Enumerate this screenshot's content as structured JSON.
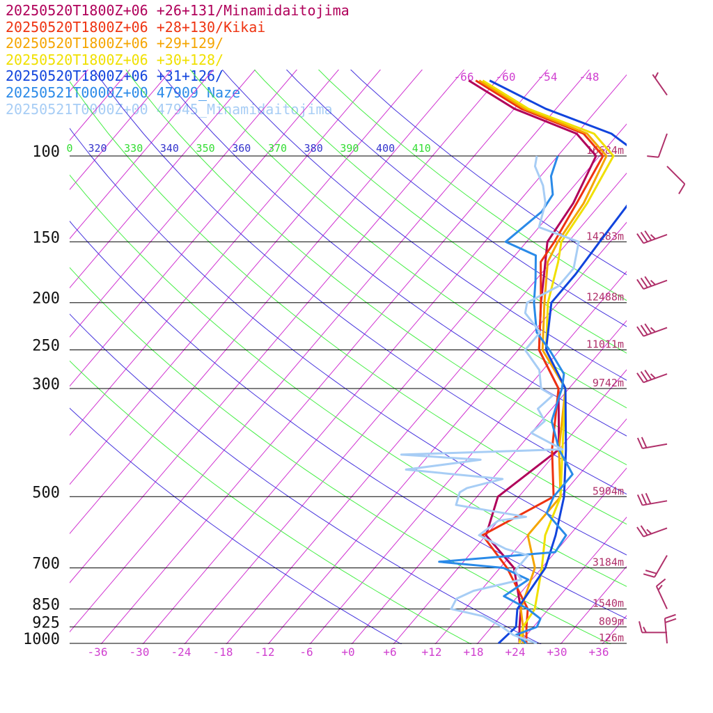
{
  "legend": [
    {
      "text": "20250520T1800Z+06 +26+131/Minamidaitojima",
      "color": "#b0005a"
    },
    {
      "text": "20250520T1800Z+06 +28+130/Kikai",
      "color": "#ee3311"
    },
    {
      "text": "20250520T1800Z+06 +29+129/",
      "color": "#f5a500"
    },
    {
      "text": "20250520T1800Z+06 +30+128/",
      "color": "#f0e000"
    },
    {
      "text": "20250520T1800Z+06 +31+126/",
      "color": "#1144dd"
    },
    {
      "text": "20250521T0000Z+00 47909_Naze",
      "color": "#2a8ae8"
    },
    {
      "text": "20250521T0000Z+00 47945_Minamidaitojima",
      "color": "#a7cdf5"
    }
  ],
  "chart_data": {
    "type": "line",
    "title": "",
    "pressure_levels": [
      {
        "p": 100,
        "label": "100",
        "height": "16684m"
      },
      {
        "p": 150,
        "label": "150",
        "height": "14283m"
      },
      {
        "p": 200,
        "label": "200",
        "height": "12488m"
      },
      {
        "p": 250,
        "label": "250",
        "height": "11011m"
      },
      {
        "p": 300,
        "label": "300",
        "height": "9742m"
      },
      {
        "p": 500,
        "label": "500",
        "height": "5904m"
      },
      {
        "p": 700,
        "label": "700",
        "height": "3184m"
      },
      {
        "p": 850,
        "label": "850",
        "height": "1540m"
      },
      {
        "p": 925,
        "label": "925",
        "height": "809m"
      },
      {
        "p": 1000,
        "label": "1000",
        "height": "126m"
      }
    ],
    "temperature_ticks": [
      "-36",
      "-30",
      "-24",
      "-18",
      "-12",
      "-6",
      "+0",
      "+6",
      "+12",
      "+18",
      "+24",
      "+30",
      "+36"
    ],
    "upper_temperature_labels": [
      "-66",
      "-60",
      "-54",
      "-48"
    ],
    "theta_labels": [
      {
        "text": "0",
        "color": "#33dd33"
      },
      {
        "text": "320",
        "color": "#3333cc"
      },
      {
        "text": "330",
        "color": "#33dd33"
      },
      {
        "text": "340",
        "color": "#3333cc"
      },
      {
        "text": "350",
        "color": "#33dd33"
      },
      {
        "text": "360",
        "color": "#3333cc"
      },
      {
        "text": "370",
        "color": "#33dd33"
      },
      {
        "text": "380",
        "color": "#3333cc"
      },
      {
        "text": "390",
        "color": "#33dd33"
      },
      {
        "text": "400",
        "color": "#3333cc"
      },
      {
        "text": "410",
        "color": "#33dd33"
      }
    ],
    "series": [
      {
        "name": "20250520T1800Z+06 +26+131/Minamidaitojima",
        "color": "#b0005a",
        "points": [
          [
            1000,
            24.0
          ],
          [
            925,
            22.0
          ],
          [
            850,
            20.0
          ],
          [
            700,
            14.0
          ],
          [
            600,
            6.0
          ],
          [
            500,
            3.0
          ],
          [
            400,
            6.0
          ],
          [
            300,
            -1.5
          ],
          [
            250,
            -9.0
          ],
          [
            200,
            -14.5
          ],
          [
            175,
            -17.5
          ],
          [
            150,
            -21.0
          ],
          [
            125,
            -22.0
          ],
          [
            100,
            -24.5
          ],
          [
            90,
            -30.0
          ],
          [
            80,
            -42.0
          ],
          [
            70,
            -52.0
          ]
        ]
      },
      {
        "name": "20250520T1800Z+06 +28+130/Kikai",
        "color": "#ee3311",
        "points": [
          [
            1000,
            25.0
          ],
          [
            925,
            23.0
          ],
          [
            850,
            21.0
          ],
          [
            700,
            13.0
          ],
          [
            600,
            5.5
          ],
          [
            500,
            11.0
          ],
          [
            400,
            5.0
          ],
          [
            300,
            -1.5
          ],
          [
            250,
            -9.0
          ],
          [
            200,
            -14.5
          ],
          [
            165,
            -19.5
          ],
          [
            150,
            -20.0
          ],
          [
            125,
            -21.5
          ],
          [
            100,
            -23.5
          ],
          [
            90,
            -29.0
          ],
          [
            80,
            -41.0
          ],
          [
            70,
            -51.0
          ]
        ]
      },
      {
        "name": "20250520T1800Z+06 +29+129/",
        "color": "#f5a500",
        "points": [
          [
            1000,
            24.5
          ],
          [
            925,
            22.5
          ],
          [
            850,
            20.0
          ],
          [
            700,
            17.0
          ],
          [
            600,
            12.0
          ],
          [
            500,
            12.0
          ],
          [
            400,
            6.0
          ],
          [
            300,
            -0.5
          ],
          [
            250,
            -8.5
          ],
          [
            200,
            -14.0
          ],
          [
            165,
            -18.5
          ],
          [
            150,
            -19.5
          ],
          [
            125,
            -20.5
          ],
          [
            100,
            -23.0
          ],
          [
            90,
            -28.5
          ],
          [
            80,
            -40.5
          ],
          [
            70,
            -50.5
          ]
        ]
      },
      {
        "name": "20250520T1800Z+06 +30+128/",
        "color": "#f0e000",
        "points": [
          [
            1000,
            24.0
          ],
          [
            925,
            22.5
          ],
          [
            850,
            22.0
          ],
          [
            700,
            18.0
          ],
          [
            600,
            14.5
          ],
          [
            500,
            12.0
          ],
          [
            400,
            6.5
          ],
          [
            300,
            -0.5
          ],
          [
            250,
            -8.0
          ],
          [
            200,
            -13.5
          ],
          [
            165,
            -17.0
          ],
          [
            150,
            -19.0
          ],
          [
            125,
            -20.0
          ],
          [
            100,
            -22.0
          ],
          [
            90,
            -27.5
          ],
          [
            80,
            -40.0
          ],
          [
            70,
            -50.0
          ]
        ]
      },
      {
        "name": "20250520T1800Z+06 +31+126/",
        "color": "#1144dd",
        "points": [
          [
            1000,
            21.0
          ],
          [
            925,
            21.5
          ],
          [
            850,
            19.5
          ],
          [
            700,
            18.5
          ],
          [
            600,
            16.0
          ],
          [
            500,
            12.5
          ],
          [
            400,
            7.0
          ],
          [
            300,
            -0.5
          ],
          [
            250,
            -8.0
          ],
          [
            200,
            -13.0
          ],
          [
            175,
            -13.0
          ],
          [
            150,
            -13.5
          ],
          [
            125,
            -14.0
          ],
          [
            100,
            -18.0
          ],
          [
            90,
            -25.0
          ],
          [
            80,
            -37.5
          ],
          [
            70,
            -49.0
          ]
        ]
      },
      {
        "name": "20250521T0000Z+00 47909_Naze",
        "color": "#2a8ae8",
        "points": [
          [
            1000,
            25.0
          ],
          [
            960,
            22.5
          ],
          [
            925,
            24.5
          ],
          [
            890,
            24.0
          ],
          [
            850,
            21.0
          ],
          [
            800,
            16.0
          ],
          [
            740,
            17.5
          ],
          [
            700,
            12.5
          ],
          [
            680,
            2.5
          ],
          [
            650,
            18.0
          ],
          [
            600,
            17.5
          ],
          [
            540,
            12.0
          ],
          [
            500,
            11.0
          ],
          [
            450,
            11.0
          ],
          [
            400,
            6.0
          ],
          [
            350,
            1.5
          ],
          [
            310,
            -0.5
          ],
          [
            300,
            -1.0
          ],
          [
            280,
            -2.5
          ],
          [
            250,
            -7.5
          ],
          [
            230,
            -11.5
          ],
          [
            200,
            -15.5
          ],
          [
            180,
            -18.0
          ],
          [
            160,
            -21.0
          ],
          [
            150,
            -27.0
          ],
          [
            130,
            -25.5
          ],
          [
            120,
            -26.0
          ],
          [
            110,
            -28.5
          ],
          [
            100,
            -30.0
          ]
        ]
      },
      {
        "name": "20250521T0000Z+00 47945_Minamidaitojima",
        "color": "#a7cdf5",
        "points": [
          [
            1000,
            26.5
          ],
          [
            960,
            22.0
          ],
          [
            925,
            19.5
          ],
          [
            880,
            15.5
          ],
          [
            850,
            10.0
          ],
          [
            810,
            9.5
          ],
          [
            780,
            11.0
          ],
          [
            740,
            16.5
          ],
          [
            710,
            14.5
          ],
          [
            660,
            14.5
          ],
          [
            640,
            10.5
          ],
          [
            600,
            5.0
          ],
          [
            560,
            6.0
          ],
          [
            550,
            9.5
          ],
          [
            520,
            -2.0
          ],
          [
            490,
            -3.0
          ],
          [
            480,
            -2.5
          ],
          [
            460,
            1.5
          ],
          [
            440,
            -13.5
          ],
          [
            420,
            -4.0
          ],
          [
            410,
            -16.0
          ],
          [
            400,
            6.5
          ],
          [
            370,
            0.0
          ],
          [
            350,
            0.5
          ],
          [
            330,
            -2.0
          ],
          [
            310,
            -1.5
          ],
          [
            300,
            -4.0
          ],
          [
            275,
            -6.5
          ],
          [
            250,
            -11.0
          ],
          [
            230,
            -11.0
          ],
          [
            210,
            -15.5
          ],
          [
            200,
            -16.5
          ],
          [
            185,
            -14.0
          ],
          [
            170,
            -14.0
          ],
          [
            150,
            -16.5
          ],
          [
            140,
            -24.0
          ],
          [
            125,
            -26.0
          ],
          [
            115,
            -28.5
          ],
          [
            105,
            -32.0
          ],
          [
            100,
            -33.0
          ]
        ]
      }
    ],
    "wind_barbs": [
      {
        "p": 75,
        "speed": 5,
        "dir": 325
      },
      {
        "p": 90,
        "speed": 10,
        "dir": 200
      },
      {
        "p": 105,
        "speed": 10,
        "dir": 135
      },
      {
        "p": 145,
        "speed": 35,
        "dir": 250
      },
      {
        "p": 180,
        "speed": 35,
        "dir": 250
      },
      {
        "p": 225,
        "speed": 35,
        "dir": 250
      },
      {
        "p": 280,
        "speed": 35,
        "dir": 250
      },
      {
        "p": 390,
        "speed": 20,
        "dir": 260
      },
      {
        "p": 510,
        "speed": 30,
        "dir": 260
      },
      {
        "p": 580,
        "speed": 25,
        "dir": 250
      },
      {
        "p": 660,
        "speed": 20,
        "dir": 210
      },
      {
        "p": 850,
        "speed": 15,
        "dir": 335
      },
      {
        "p": 950,
        "speed": 15,
        "dir": 270
      },
      {
        "p": 1000,
        "speed": 20,
        "dir": 355
      }
    ],
    "xlabel": "",
    "ylabel": "",
    "grid": true
  }
}
